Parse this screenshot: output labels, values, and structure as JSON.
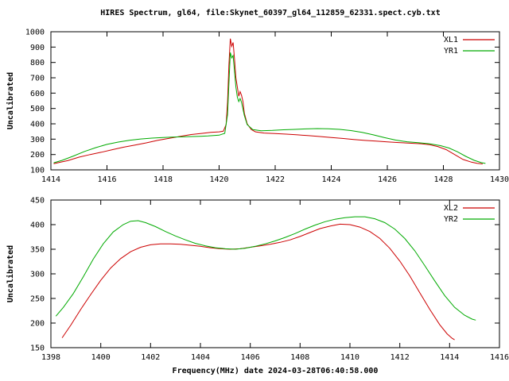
{
  "title": "HIRES Spectrum, gl64, file:Skynet_60397_gl64_112859_62331.spect.cyb.txt",
  "xlabel": "Frequency(MHz) date 2024-03-28T06:40:58.000",
  "colors": {
    "background": "#ffffff",
    "axis": "#000000",
    "text": "#000000",
    "series_red": "#cc0000",
    "series_green": "#00aa00"
  },
  "chart_data": [
    {
      "type": "line",
      "title": "",
      "ylabel": "Uncalibrated",
      "xlim": [
        1414,
        1430
      ],
      "ylim": [
        100,
        1000
      ],
      "xticks": [
        1414,
        1416,
        1418,
        1420,
        1422,
        1424,
        1426,
        1428,
        1430
      ],
      "yticks": [
        100,
        200,
        300,
        400,
        500,
        600,
        700,
        800,
        900,
        1000
      ],
      "grid": false,
      "legend_position": "top-right",
      "series": [
        {
          "name": "XL1",
          "color": "#cc0000",
          "points": [
            [
              1414.1,
              140
            ],
            [
              1414.35,
              150
            ],
            [
              1414.6,
              160
            ],
            [
              1415.0,
              183
            ],
            [
              1415.4,
              200
            ],
            [
              1415.8,
              215
            ],
            [
              1416.2,
              232
            ],
            [
              1416.6,
              248
            ],
            [
              1417.0,
              262
            ],
            [
              1417.4,
              276
            ],
            [
              1417.8,
              292
            ],
            [
              1418.2,
              305
            ],
            [
              1418.6,
              318
            ],
            [
              1419.0,
              330
            ],
            [
              1419.4,
              338
            ],
            [
              1419.7,
              344
            ],
            [
              1420.0,
              348
            ],
            [
              1420.15,
              352
            ],
            [
              1420.25,
              395
            ],
            [
              1420.3,
              540
            ],
            [
              1420.35,
              780
            ],
            [
              1420.4,
              955
            ],
            [
              1420.45,
              905
            ],
            [
              1420.5,
              930
            ],
            [
              1420.55,
              820
            ],
            [
              1420.6,
              700
            ],
            [
              1420.65,
              640
            ],
            [
              1420.7,
              580
            ],
            [
              1420.75,
              610
            ],
            [
              1420.8,
              585
            ],
            [
              1420.85,
              545
            ],
            [
              1420.9,
              470
            ],
            [
              1421.0,
              400
            ],
            [
              1421.15,
              362
            ],
            [
              1421.3,
              348
            ],
            [
              1421.6,
              340
            ],
            [
              1422.0,
              337
            ],
            [
              1422.4,
              333
            ],
            [
              1422.8,
              328
            ],
            [
              1423.2,
              323
            ],
            [
              1423.6,
              317
            ],
            [
              1424.0,
              311
            ],
            [
              1424.4,
              305
            ],
            [
              1424.8,
              298
            ],
            [
              1425.2,
              292
            ],
            [
              1425.6,
              287
            ],
            [
              1426.0,
              282
            ],
            [
              1426.4,
              278
            ],
            [
              1426.8,
              274
            ],
            [
              1427.2,
              270
            ],
            [
              1427.5,
              264
            ],
            [
              1427.8,
              252
            ],
            [
              1428.1,
              232
            ],
            [
              1428.4,
              200
            ],
            [
              1428.7,
              168
            ],
            [
              1429.0,
              150
            ],
            [
              1429.2,
              143
            ],
            [
              1429.4,
              139
            ]
          ]
        },
        {
          "name": "YR1",
          "color": "#00aa00",
          "points": [
            [
              1414.1,
              146
            ],
            [
              1414.4,
              162
            ],
            [
              1414.8,
              190
            ],
            [
              1415.2,
              220
            ],
            [
              1415.6,
              245
            ],
            [
              1416.0,
              266
            ],
            [
              1416.4,
              281
            ],
            [
              1416.8,
              293
            ],
            [
              1417.2,
              301
            ],
            [
              1417.6,
              307
            ],
            [
              1418.0,
              311
            ],
            [
              1418.4,
              314
            ],
            [
              1418.8,
              316
            ],
            [
              1419.2,
              318
            ],
            [
              1419.6,
              321
            ],
            [
              1420.0,
              326
            ],
            [
              1420.2,
              338
            ],
            [
              1420.3,
              460
            ],
            [
              1420.35,
              660
            ],
            [
              1420.4,
              865
            ],
            [
              1420.45,
              830
            ],
            [
              1420.5,
              845
            ],
            [
              1420.55,
              740
            ],
            [
              1420.6,
              640
            ],
            [
              1420.65,
              575
            ],
            [
              1420.7,
              545
            ],
            [
              1420.75,
              565
            ],
            [
              1420.8,
              540
            ],
            [
              1420.9,
              455
            ],
            [
              1421.0,
              395
            ],
            [
              1421.2,
              362
            ],
            [
              1421.5,
              355
            ],
            [
              1421.9,
              357
            ],
            [
              1422.3,
              361
            ],
            [
              1422.7,
              364
            ],
            [
              1423.1,
              367
            ],
            [
              1423.5,
              369
            ],
            [
              1423.9,
              368
            ],
            [
              1424.3,
              364
            ],
            [
              1424.7,
              356
            ],
            [
              1425.1,
              344
            ],
            [
              1425.5,
              328
            ],
            [
              1425.9,
              310
            ],
            [
              1426.3,
              294
            ],
            [
              1426.7,
              283
            ],
            [
              1427.1,
              277
            ],
            [
              1427.5,
              270
            ],
            [
              1427.9,
              258
            ],
            [
              1428.2,
              242
            ],
            [
              1428.5,
              218
            ],
            [
              1428.8,
              188
            ],
            [
              1429.1,
              162
            ],
            [
              1429.35,
              147
            ],
            [
              1429.5,
              142
            ]
          ]
        }
      ]
    },
    {
      "type": "line",
      "title": "",
      "ylabel": "Uncalibrated",
      "xlim": [
        1398,
        1416
      ],
      "ylim": [
        150,
        450
      ],
      "xticks": [
        1398,
        1400,
        1402,
        1404,
        1406,
        1408,
        1410,
        1412,
        1414,
        1416
      ],
      "yticks": [
        150,
        200,
        250,
        300,
        350,
        400,
        450
      ],
      "grid": false,
      "legend_position": "top-right",
      "series": [
        {
          "name": "XL2",
          "color": "#cc0000",
          "points": [
            [
              1398.45,
              170
            ],
            [
              1398.8,
              196
            ],
            [
              1399.2,
              228
            ],
            [
              1399.6,
              258
            ],
            [
              1400.0,
              287
            ],
            [
              1400.4,
              312
            ],
            [
              1400.8,
              331
            ],
            [
              1401.2,
              345
            ],
            [
              1401.6,
              354
            ],
            [
              1402.0,
              359
            ],
            [
              1402.4,
              361
            ],
            [
              1402.8,
              361
            ],
            [
              1403.2,
              360
            ],
            [
              1403.6,
              358
            ],
            [
              1404.0,
              356
            ],
            [
              1404.4,
              353
            ],
            [
              1404.8,
              351
            ],
            [
              1405.2,
              350
            ],
            [
              1405.6,
              351
            ],
            [
              1406.0,
              354
            ],
            [
              1406.4,
              357
            ],
            [
              1406.8,
              360
            ],
            [
              1407.2,
              364
            ],
            [
              1407.6,
              369
            ],
            [
              1408.0,
              376
            ],
            [
              1408.4,
              384
            ],
            [
              1408.8,
              392
            ],
            [
              1409.2,
              397
            ],
            [
              1409.6,
              401
            ],
            [
              1410.0,
              400
            ],
            [
              1410.4,
              395
            ],
            [
              1410.8,
              386
            ],
            [
              1411.2,
              372
            ],
            [
              1411.6,
              352
            ],
            [
              1412.0,
              326
            ],
            [
              1412.4,
              296
            ],
            [
              1412.8,
              262
            ],
            [
              1413.2,
              228
            ],
            [
              1413.6,
              197
            ],
            [
              1413.9,
              178
            ],
            [
              1414.1,
              169
            ],
            [
              1414.2,
              166
            ]
          ]
        },
        {
          "name": "YR2",
          "color": "#00aa00",
          "points": [
            [
              1398.2,
              214
            ],
            [
              1398.5,
              232
            ],
            [
              1398.9,
              260
            ],
            [
              1399.3,
              294
            ],
            [
              1399.7,
              330
            ],
            [
              1400.1,
              361
            ],
            [
              1400.5,
              385
            ],
            [
              1400.9,
              400
            ],
            [
              1401.2,
              407
            ],
            [
              1401.5,
              408
            ],
            [
              1401.8,
              404
            ],
            [
              1402.2,
              396
            ],
            [
              1402.6,
              386
            ],
            [
              1403.0,
              377
            ],
            [
              1403.4,
              369
            ],
            [
              1403.8,
              362
            ],
            [
              1404.2,
              357
            ],
            [
              1404.6,
              353
            ],
            [
              1405.0,
              351
            ],
            [
              1405.4,
              350
            ],
            [
              1405.8,
              352
            ],
            [
              1406.2,
              356
            ],
            [
              1406.6,
              361
            ],
            [
              1407.0,
              367
            ],
            [
              1407.4,
              374
            ],
            [
              1407.8,
              382
            ],
            [
              1408.2,
              391
            ],
            [
              1408.6,
              399
            ],
            [
              1409.0,
              406
            ],
            [
              1409.4,
              411
            ],
            [
              1409.8,
              414
            ],
            [
              1410.2,
              416
            ],
            [
              1410.6,
              416
            ],
            [
              1411.0,
              412
            ],
            [
              1411.4,
              404
            ],
            [
              1411.8,
              391
            ],
            [
              1412.2,
              372
            ],
            [
              1412.6,
              347
            ],
            [
              1413.0,
              317
            ],
            [
              1413.4,
              286
            ],
            [
              1413.8,
              256
            ],
            [
              1414.2,
              232
            ],
            [
              1414.6,
              216
            ],
            [
              1414.9,
              208
            ],
            [
              1415.05,
              206
            ]
          ]
        }
      ]
    }
  ]
}
